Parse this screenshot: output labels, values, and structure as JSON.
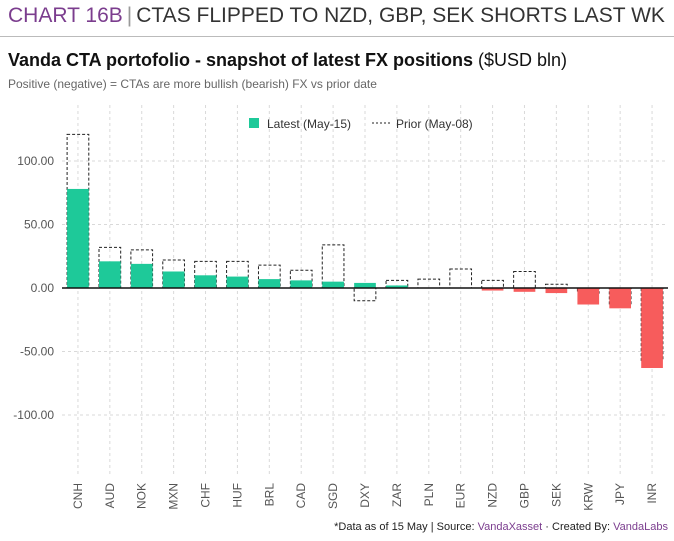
{
  "header": {
    "tag": "CHART 16B",
    "separator": "|",
    "headline": "CTAS FLIPPED TO NZD, GBP, SEK SHORTS LAST WK"
  },
  "title": {
    "main": "Vanda CTA portofolio - snapshot of latest FX positions",
    "unit": "($USD bln)"
  },
  "subtitle": "Positive (negative) = CTAs are more bullish (bearish) FX vs prior date",
  "footer": {
    "note": "*Data as of 15 May | Source: ",
    "source": "VandaXasset",
    "created_prefix": " · Created By: ",
    "creator": "VandaLabs"
  },
  "colors": {
    "positive": "#1ec999",
    "negative": "#f75c5c",
    "prior_outline": "#222222",
    "grid": "#d9d9d9"
  },
  "chart_data": {
    "type": "bar",
    "legend_position": "top-center",
    "grid": true,
    "categories": [
      "CNH",
      "AUD",
      "NOK",
      "MXN",
      "CHF",
      "HUF",
      "BRL",
      "CAD",
      "SGD",
      "DXY",
      "ZAR",
      "PLN",
      "EUR",
      "NZD",
      "GBP",
      "SEK",
      "KRW",
      "JPY",
      "INR"
    ],
    "series": [
      {
        "name": "Latest (May-15)",
        "values": [
          78,
          21,
          19,
          13,
          10,
          9,
          7,
          6,
          5,
          4,
          2,
          0,
          0,
          -2,
          -3,
          -4,
          -13,
          -16,
          -63
        ]
      },
      {
        "name": "Prior (May-08)",
        "values": [
          121,
          32,
          30,
          22,
          21,
          21,
          18,
          14,
          34,
          -10,
          6,
          7,
          15,
          6,
          13,
          3,
          -4,
          -13,
          -57
        ]
      }
    ],
    "yticks": [
      "100.00",
      "50.00",
      "0.00",
      "-50.00",
      "-100.00"
    ],
    "ylim": [
      -135,
      135
    ]
  }
}
